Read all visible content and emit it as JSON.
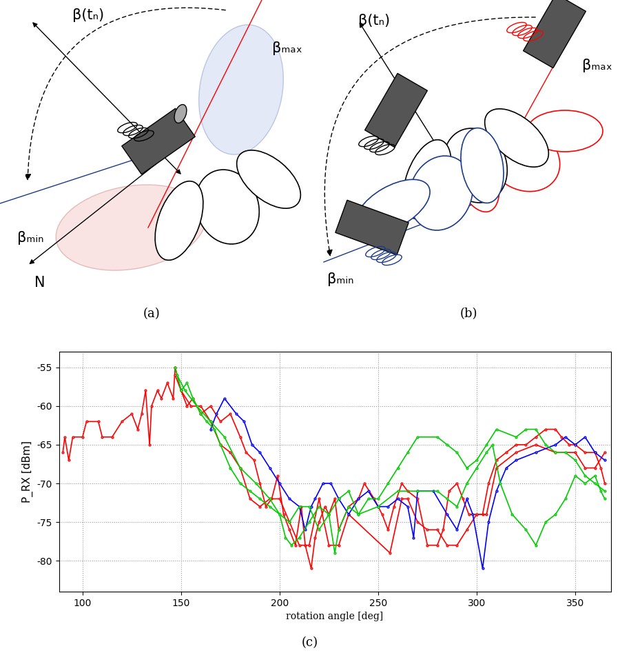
{
  "diagram_a": {
    "label": "(a)",
    "beta_t": "β(tₙ)",
    "beta_max": "βₘₐₓ",
    "beta_min": "βₘᵢₙ",
    "north": "N"
  },
  "diagram_b": {
    "label": "(b)",
    "beta_t": "β(tₙ)",
    "beta_max": "βₘₐₓ",
    "beta_min": "βₘᵢₙ"
  },
  "chart_data": {
    "type": "line",
    "caption": "(c)",
    "x_label": "rotation angle [deg]",
    "y_label": "P_RX [dBm]",
    "xlim": [
      88,
      368
    ],
    "ylim": [
      -84,
      -53
    ],
    "xticks": [
      100,
      150,
      200,
      250,
      300,
      350
    ],
    "yticks": [
      -80,
      -75,
      -70,
      -65,
      -60,
      -55
    ],
    "grid": true,
    "series": [
      {
        "color": "#ff0000",
        "marker": "dot",
        "line_style": "solid",
        "x": [
          90,
          91,
          93,
          95,
          100,
          102,
          108,
          110,
          115,
          120,
          125,
          128,
          130,
          132,
          134,
          135,
          138,
          140,
          143,
          146,
          147,
          150,
          153,
          156,
          160,
          165,
          170,
          175,
          180,
          183,
          187,
          190,
          193,
          196,
          199,
          202,
          205,
          208,
          211,
          213,
          216,
          218,
          220,
          223,
          225,
          228,
          230,
          235,
          240,
          243,
          248,
          252,
          255,
          258,
          262,
          265,
          270,
          275,
          280,
          283,
          286,
          290,
          293,
          296,
          300,
          303,
          306,
          310,
          315,
          320,
          325,
          330,
          335,
          340,
          343,
          347,
          350,
          355,
          360,
          363,
          365
        ],
        "values": [
          -66,
          -64,
          -67,
          -64,
          -64,
          -62,
          -62,
          -64,
          -64,
          -62,
          -61,
          -63,
          -61,
          -58,
          -65,
          -60,
          -58,
          -59,
          -57,
          -59,
          -55,
          -58,
          -60,
          -59,
          -61,
          -60,
          -62,
          -61,
          -64,
          -66,
          -67,
          -70,
          -73,
          -72,
          -69,
          -74,
          -76,
          -78,
          -73,
          -78,
          -81,
          -77,
          -75,
          -73,
          -74,
          -72,
          -76,
          -73,
          -72,
          -70,
          -72,
          -74,
          -76,
          -73,
          -70,
          -71,
          -72,
          -78,
          -78,
          -76,
          -71,
          -70,
          -72,
          -74,
          -74,
          -74,
          -70,
          -67,
          -66,
          -65,
          -65,
          -64,
          -63,
          -63,
          -64,
          -65,
          -65,
          -66,
          -66,
          -68,
          -70
        ]
      },
      {
        "color": "#ff0000",
        "marker": "dot",
        "line_style": "solid",
        "x": [
          147,
          150,
          155,
          160,
          165,
          170,
          175,
          180,
          185,
          190,
          195,
          200,
          205,
          210,
          215,
          220,
          225,
          230,
          235,
          256,
          262,
          265,
          270,
          275,
          280,
          285,
          290,
          295,
          300,
          305,
          310,
          320,
          330,
          340,
          350,
          355,
          360,
          365
        ],
        "values": [
          -56,
          -58,
          -60,
          -60,
          -62,
          -65,
          -66,
          -68,
          -72,
          -73,
          -72,
          -72,
          -75,
          -78,
          -78,
          -72,
          -78,
          -78,
          -74,
          -79,
          -72,
          -72,
          -75,
          -76,
          -76,
          -78,
          -78,
          -76,
          -74,
          -74,
          -68,
          -66,
          -65,
          -66,
          -66,
          -68,
          -68,
          -66
        ]
      },
      {
        "color": "#0000ff",
        "marker": "dot",
        "line_style": "solid",
        "x": [
          165,
          168,
          172,
          178,
          182,
          186,
          190,
          195,
          200,
          205,
          210,
          213,
          216,
          218,
          222,
          226,
          230,
          235,
          240,
          245,
          250,
          255,
          260,
          265,
          268,
          270,
          278,
          285,
          290,
          295,
          298,
          303,
          306,
          310,
          315,
          320,
          330,
          340,
          345,
          350,
          355,
          360,
          365
        ],
        "values": [
          -63,
          -61,
          -59,
          -61,
          -62,
          -65,
          -66,
          -68,
          -70,
          -72,
          -73,
          -76,
          -73,
          -72,
          -70,
          -70,
          -72,
          -74,
          -72,
          -71,
          -73,
          -73,
          -72,
          -73,
          -77,
          -71,
          -71,
          -74,
          -76,
          -72,
          -74,
          -81,
          -75,
          -71,
          -68,
          -67,
          -66,
          -65,
          -64,
          -65,
          -64,
          -66,
          -67
        ]
      },
      {
        "color": "#00cc00",
        "marker": "dot",
        "line_style": "solid",
        "x": [
          147,
          150,
          153,
          156,
          160,
          163,
          167,
          170,
          175,
          180,
          185,
          190,
          195,
          200,
          203,
          206,
          210,
          215,
          220,
          225,
          228,
          230,
          235,
          240,
          245,
          250,
          255,
          260,
          265,
          270,
          280,
          285,
          290,
          295,
          300,
          305,
          310,
          320,
          325,
          330,
          335,
          340,
          345,
          350,
          355,
          360,
          365
        ],
        "values": [
          -55,
          -58,
          -57,
          -59,
          -61,
          -62,
          -63,
          -65,
          -68,
          -70,
          -71,
          -72,
          -73,
          -74,
          -77,
          -78,
          -77,
          -75,
          -73,
          -74,
          -79,
          -76,
          -73,
          -74,
          -72,
          -72,
          -70,
          -68,
          -66,
          -64,
          -64,
          -65,
          -66,
          -68,
          -67,
          -65,
          -63,
          -64,
          -63,
          -63,
          -65,
          -66,
          -66,
          -67,
          -69,
          -70,
          -71
        ]
      },
      {
        "color": "#00cc00",
        "marker": "dot",
        "line_style": "solid",
        "x": [
          148,
          152,
          158,
          165,
          172,
          180,
          188,
          195,
          200,
          205,
          210,
          215,
          220,
          225,
          230,
          235,
          240,
          250,
          260,
          270,
          280,
          285,
          290,
          295,
          300,
          305,
          308,
          312,
          318,
          325,
          330,
          335,
          340,
          345,
          350,
          355,
          360,
          363,
          365
        ],
        "values": [
          -56,
          -58,
          -60,
          -62,
          -64,
          -68,
          -70,
          -72,
          -74,
          -75,
          -73,
          -73,
          -76,
          -74,
          -72,
          -71,
          -74,
          -73,
          -71,
          -71,
          -71,
          -72,
          -73,
          -70,
          -68,
          -66,
          -65,
          -70,
          -74,
          -76,
          -78,
          -75,
          -74,
          -72,
          -69,
          -70,
          -69,
          -71,
          -72
        ]
      }
    ]
  }
}
